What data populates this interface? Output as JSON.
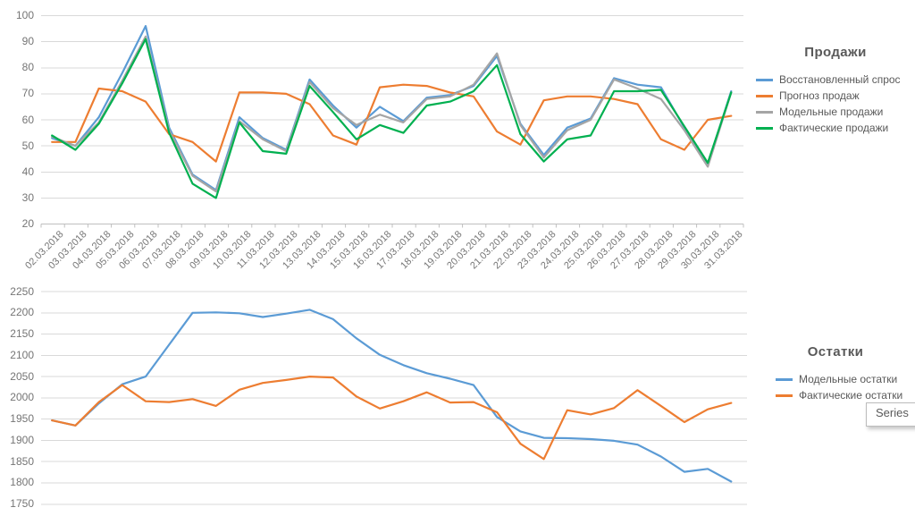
{
  "tooltip": {
    "text": "Series"
  },
  "chart_data": [
    {
      "type": "line",
      "title": "Продажи",
      "legend_position": "right",
      "grid": true,
      "x_labels_visible": true,
      "categories": [
        "02.03.2018",
        "03.03.2018",
        "04.03.2018",
        "05.03.2018",
        "06.03.2018",
        "07.03.2018",
        "08.03.2018",
        "09.03.2018",
        "10.03.2018",
        "11.03.2018",
        "12.03.2018",
        "13.03.2018",
        "14.03.2018",
        "15.03.2018",
        "16.03.2018",
        "17.03.2018",
        "18.03.2018",
        "19.03.2018",
        "20.03.2018",
        "21.03.2018",
        "22.03.2018",
        "23.03.2018",
        "24.03.2018",
        "25.03.2018",
        "26.03.2018",
        "27.03.2018",
        "28.03.2018",
        "29.03.2018",
        "30.03.2018",
        "31.03.2018"
      ],
      "y_axis": {
        "min": 20,
        "max": 100,
        "step": 10
      },
      "series": [
        {
          "name": "Восстановленный спрос",
          "color": "#5B9BD5",
          "values": [
            53,
            50,
            61,
            78,
            96,
            57,
            39,
            33,
            61,
            53,
            48.5,
            75.5,
            65.5,
            57,
            65,
            59.5,
            68.5,
            69.5,
            73,
            84.5,
            58.5,
            46.5,
            57,
            60.5,
            76,
            73.5,
            72.5,
            57,
            43,
            71
          ]
        },
        {
          "name": "Прогноз продаж",
          "color": "#ED7D31",
          "values": [
            51.5,
            51.5,
            72,
            71,
            67,
            54.5,
            51.5,
            44,
            70.5,
            70.5,
            70,
            66,
            54,
            50.5,
            72.5,
            73.5,
            73,
            70.5,
            69,
            55.5,
            50.5,
            67.5,
            69,
            69,
            68,
            66,
            52.5,
            48.5,
            60,
            61.5
          ]
        },
        {
          "name": "Модельные продажи",
          "color": "#A5A5A5",
          "values": [
            53.5,
            50,
            59,
            75,
            92,
            56,
            38.5,
            32.5,
            59.5,
            52.5,
            48,
            74.5,
            64.5,
            58,
            62,
            59,
            68,
            69,
            73.5,
            85.5,
            58,
            45.5,
            56,
            60,
            75.5,
            72,
            68,
            56,
            42,
            70.5
          ]
        },
        {
          "name": "Фактические продажи",
          "color": "#00B050",
          "values": [
            54,
            48.5,
            58.5,
            74,
            91,
            55,
            35.5,
            30,
            59,
            48,
            47,
            73,
            63,
            52.5,
            58,
            55,
            65.5,
            67,
            71,
            81,
            54.5,
            44,
            52.5,
            54,
            71,
            71,
            71.5,
            57.5,
            43.5,
            70.5
          ]
        }
      ]
    },
    {
      "type": "line",
      "title": "Остатки",
      "legend_position": "right",
      "grid": true,
      "x_labels_visible": false,
      "categories": [
        "02.03.2018",
        "03.03.2018",
        "04.03.2018",
        "05.03.2018",
        "06.03.2018",
        "07.03.2018",
        "08.03.2018",
        "09.03.2018",
        "10.03.2018",
        "11.03.2018",
        "12.03.2018",
        "13.03.2018",
        "14.03.2018",
        "15.03.2018",
        "16.03.2018",
        "17.03.2018",
        "18.03.2018",
        "19.03.2018",
        "20.03.2018",
        "21.03.2018",
        "22.03.2018",
        "23.03.2018",
        "24.03.2018",
        "25.03.2018",
        "26.03.2018",
        "27.03.2018",
        "28.03.2018",
        "29.03.2018",
        "30.03.2018",
        "31.03.2018"
      ],
      "y_axis": {
        "min": 1750,
        "max": 2250,
        "step": 50
      },
      "series": [
        {
          "name": "Модельные остатки",
          "color": "#5B9BD5",
          "values": [
            1947,
            1935,
            1987,
            2032,
            2050,
            2125,
            2200,
            2201,
            2199,
            2190,
            2198,
            2207,
            2185,
            2140,
            2101,
            2077,
            2058,
            2045,
            2030,
            1955,
            1921,
            1906,
            1905,
            1903,
            1899,
            1890,
            1862,
            1826,
            1833,
            1803
          ]
        },
        {
          "name": "Фактические остатки",
          "color": "#ED7D31",
          "values": [
            1947,
            1935,
            1990,
            2030,
            1992,
            1990,
            1997,
            1981,
            2019,
            2035,
            2042,
            2050,
            2048,
            2003,
            1975,
            1992,
            2013,
            1989,
            1990,
            1966,
            1892,
            1856,
            1971,
            1961,
            1976,
            2018,
            1981,
            1943,
            1973,
            1988
          ]
        }
      ]
    }
  ]
}
